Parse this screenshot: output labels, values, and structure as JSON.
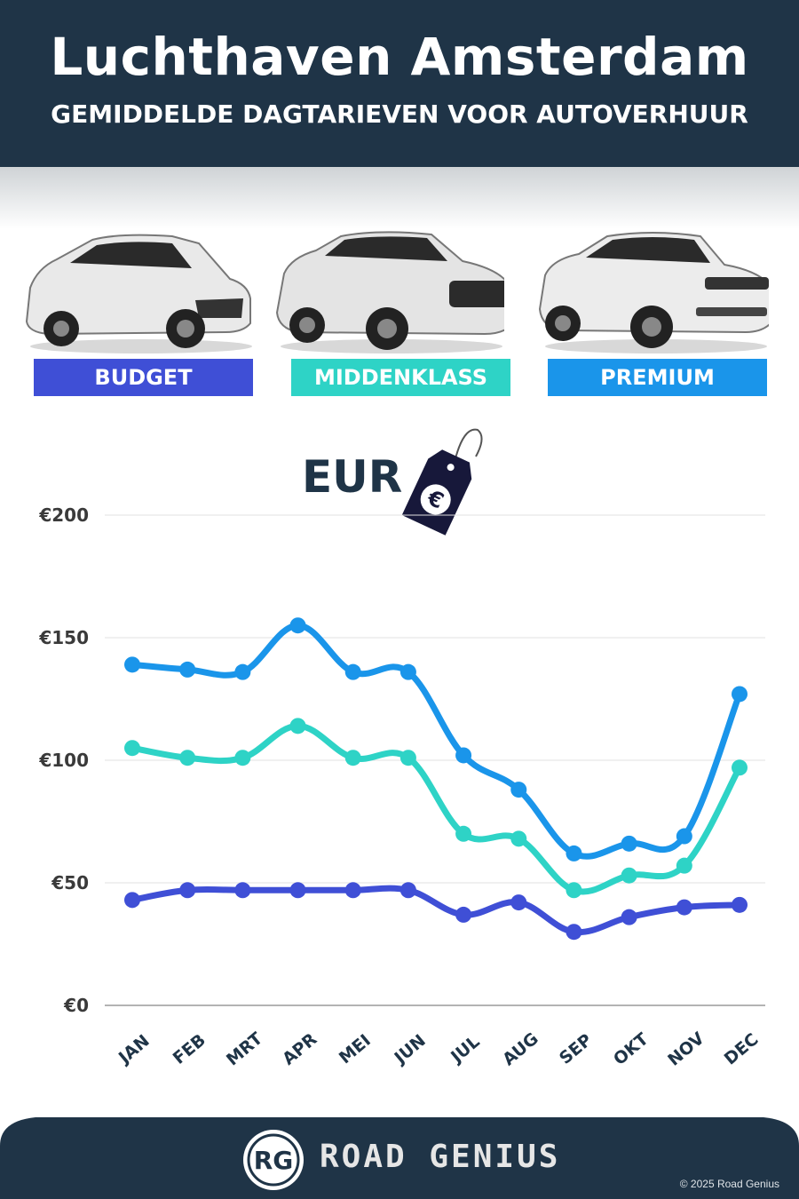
{
  "header": {
    "title": "Luchthaven Amsterdam",
    "subtitle": "GEMIDDELDE DAGTARIEVEN VOOR AUTOVERHUUR"
  },
  "categories": [
    {
      "label": "BUDGET",
      "color": "#3f4fd6"
    },
    {
      "label": "MIDDENKLASS",
      "color": "#2ed3c6"
    },
    {
      "label": "PREMIUM",
      "color": "#1a95ea"
    }
  ],
  "currency_label": "EUR",
  "tag_symbol": "€",
  "footer": {
    "logo_text": "RG",
    "brand": "ROAD GENIUS",
    "copyright": "© 2025 Road Genius"
  },
  "chart_data": {
    "type": "line",
    "categories": [
      "JAN",
      "FEB",
      "MRT",
      "APR",
      "MEI",
      "JUN",
      "JUL",
      "AUG",
      "SEP",
      "OKT",
      "NOV",
      "DEC"
    ],
    "series": [
      {
        "name": "BUDGET",
        "color": "#3f4fd6",
        "values": [
          43,
          47,
          47,
          47,
          47,
          47,
          37,
          42,
          30,
          36,
          40,
          41
        ]
      },
      {
        "name": "MIDDENKLASS",
        "color": "#2ed3c6",
        "values": [
          105,
          101,
          101,
          114,
          101,
          101,
          70,
          68,
          47,
          53,
          57,
          97
        ]
      },
      {
        "name": "PREMIUM",
        "color": "#1a95ea",
        "values": [
          139,
          137,
          136,
          155,
          136,
          136,
          102,
          88,
          62,
          66,
          69,
          127
        ]
      }
    ],
    "ylim": [
      0,
      200
    ],
    "yticks": [
      0,
      50,
      100,
      150,
      200
    ],
    "ytick_labels": [
      "€0",
      "€50",
      "€100",
      "€150",
      "€200"
    ],
    "grid": true,
    "xlabel": "",
    "ylabel": ""
  }
}
